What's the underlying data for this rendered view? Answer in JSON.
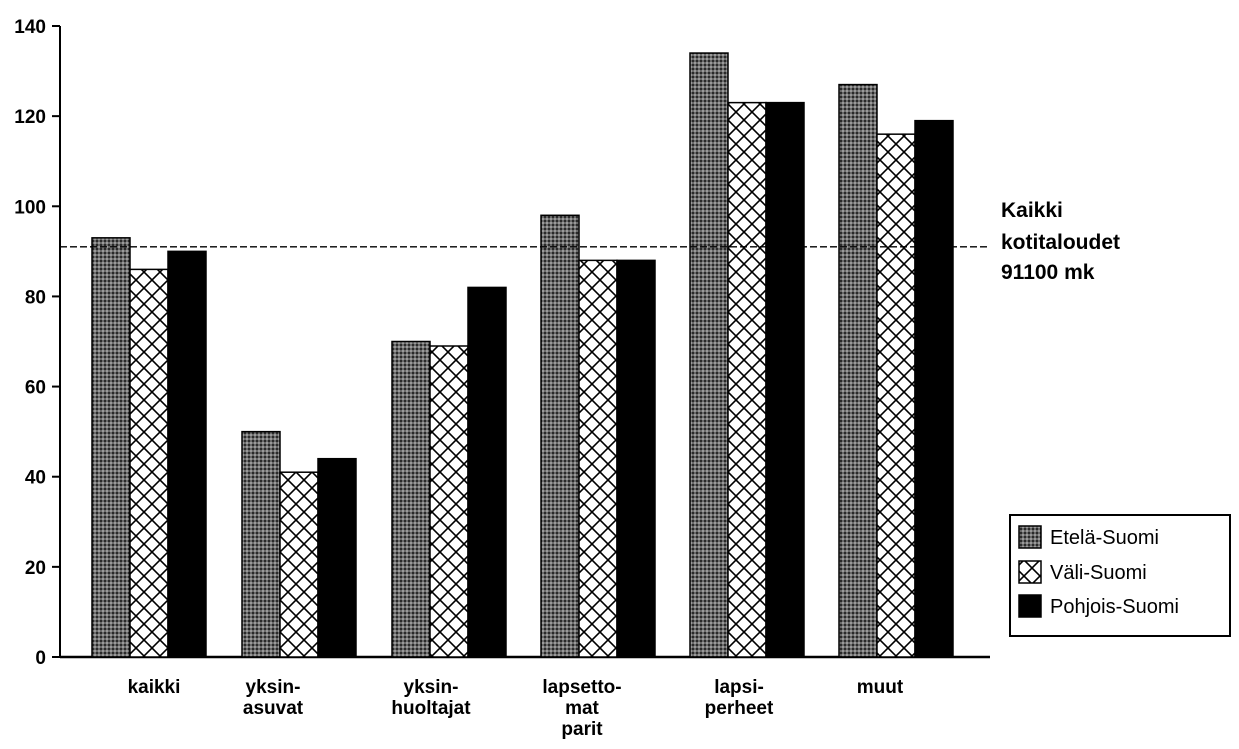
{
  "chart_data": {
    "type": "bar",
    "categories": [
      [
        "kaikki"
      ],
      [
        "yksin-",
        "asuvat"
      ],
      [
        "yksin-",
        "huoltajat"
      ],
      [
        "lapsetto-",
        "mat",
        "parit"
      ],
      [
        "lapsi-",
        "perheet"
      ],
      [
        "muut"
      ]
    ],
    "series": [
      {
        "name": "Etelä-Suomi",
        "values": [
          93,
          50,
          70,
          98,
          134,
          127
        ],
        "pattern": "dotted",
        "color": "#555555"
      },
      {
        "name": "Väli-Suomi",
        "values": [
          86,
          41,
          69,
          88,
          123,
          116
        ],
        "pattern": "crosshatch",
        "color": "#ffffff"
      },
      {
        "name": "Pohjois-Suomi",
        "values": [
          90,
          44,
          82,
          88,
          123,
          119
        ],
        "pattern": "solid",
        "color": "#000000"
      }
    ],
    "ylim": [
      0,
      140
    ],
    "yticks": [
      0,
      20,
      40,
      60,
      80,
      100,
      120,
      140
    ],
    "reference_line": {
      "value": 91,
      "label": [
        "Kaikki",
        "kotitaloudet",
        "91100 mk"
      ]
    },
    "legend_position": "bottom-right",
    "grid": false,
    "title": "",
    "xlabel": "",
    "ylabel": ""
  }
}
